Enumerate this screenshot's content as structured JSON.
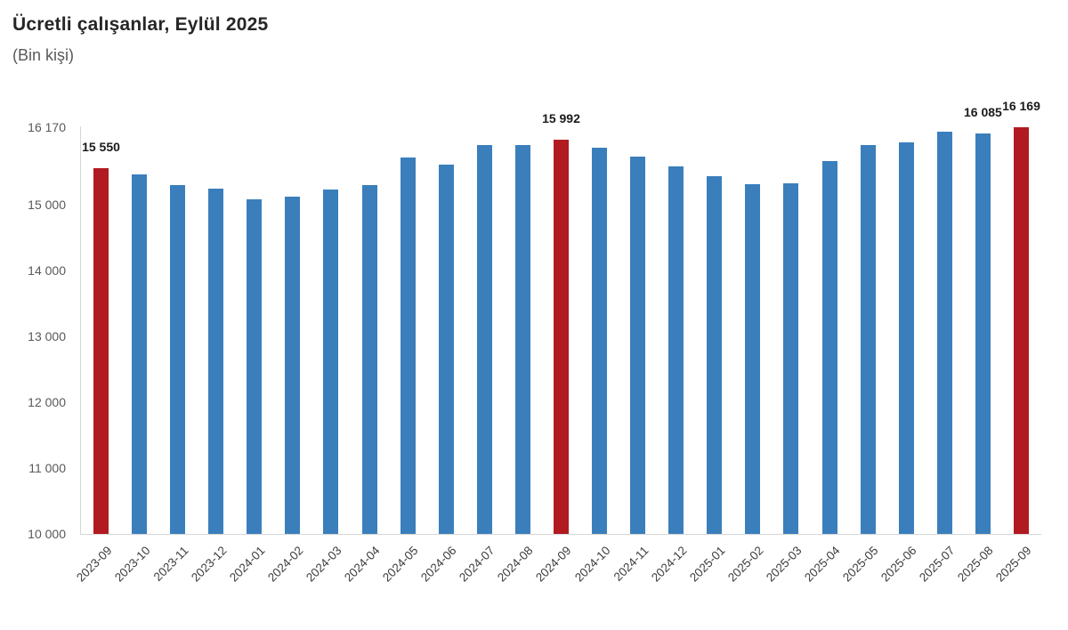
{
  "header": {
    "title": "Ücretli çalışanlar, Eylül 2025",
    "subtitle": "(Bin kişi)"
  },
  "colors": {
    "bar_blue": "#3a7fbc",
    "bar_red": "#b11a20",
    "axis_line": "#d6d6d6",
    "tick_text": "#595959",
    "title_text": "#262626",
    "data_label_text": "#1a1a1a"
  },
  "chart_data": {
    "type": "bar",
    "title": "Ücretli çalışanlar, Eylül 2025",
    "ylabel": "(Bin kişi)",
    "categories": [
      "2023-09",
      "2023-10",
      "2023-11",
      "2023-12",
      "2024-01",
      "2024-02",
      "2024-03",
      "2024-04",
      "2024-05",
      "2024-06",
      "2024-07",
      "2024-08",
      "2024-09",
      "2024-10",
      "2024-11",
      "2024-12",
      "2025-01",
      "2025-02",
      "2025-03",
      "2025-04",
      "2025-05",
      "2025-06",
      "2025-07",
      "2025-08",
      "2025-09"
    ],
    "values": [
      15550,
      15455,
      15300,
      15240,
      15075,
      15120,
      15230,
      15295,
      15710,
      15610,
      15910,
      15905,
      15992,
      15860,
      15735,
      15585,
      15435,
      15305,
      15325,
      15665,
      15905,
      15950,
      16110,
      16085,
      16169
    ],
    "highlight_indices": [
      0,
      12,
      24
    ],
    "data_labels": [
      {
        "index": 0,
        "text": "15 550"
      },
      {
        "index": 12,
        "text": "15 992"
      },
      {
        "index": 23,
        "text": "16 085"
      },
      {
        "index": 24,
        "text": "16 169"
      }
    ],
    "y_ticks": [
      {
        "value": 16170,
        "label": "16 170"
      },
      {
        "value": 15000,
        "label": "15 000"
      },
      {
        "value": 14000,
        "label": "14 000"
      },
      {
        "value": 13000,
        "label": "13 000"
      },
      {
        "value": 12000,
        "label": "12 000"
      },
      {
        "value": 11000,
        "label": "11 000"
      },
      {
        "value": 10000,
        "label": "10 000"
      }
    ],
    "ylim": [
      10000,
      16170
    ],
    "grid": false,
    "legend": false
  }
}
